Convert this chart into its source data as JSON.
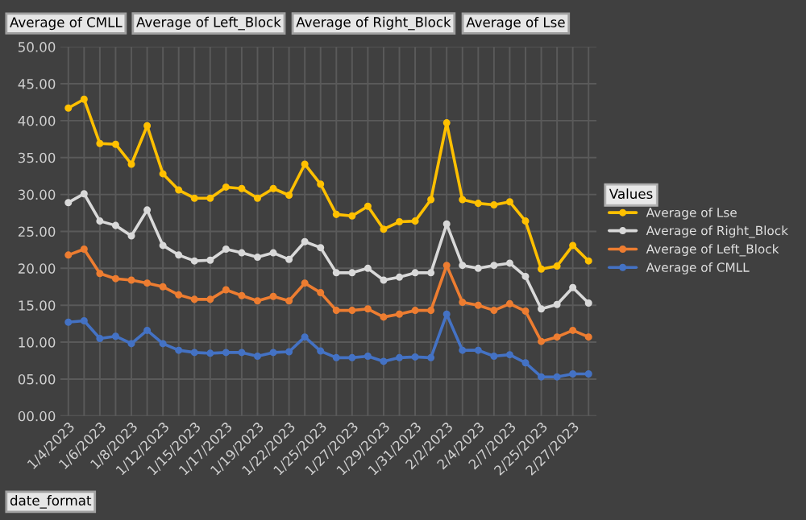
{
  "chart_data": {
    "type": "line",
    "categories": [
      "1/4/2023",
      null,
      "1/6/2023",
      null,
      "1/8/2023",
      null,
      "1/12/2023",
      null,
      "1/15/2023",
      null,
      "1/17/2023",
      null,
      "1/19/2023",
      null,
      "1/22/2023",
      null,
      "1/25/2023",
      null,
      "1/27/2023",
      null,
      "1/29/2023",
      null,
      "1/31/2023",
      null,
      "2/2/2023",
      null,
      "2/4/2023",
      null,
      "2/7/2023",
      null,
      "2/25/2023",
      null,
      "2/27/2023",
      null
    ],
    "series": [
      {
        "name": "Average of Lse",
        "color": "#ffc000",
        "values": [
          41.7,
          42.9,
          36.9,
          36.8,
          34.1,
          39.3,
          32.8,
          30.6,
          29.5,
          29.5,
          31.0,
          30.8,
          29.5,
          30.8,
          29.9,
          34.1,
          31.4,
          27.3,
          27.1,
          28.4,
          25.3,
          26.3,
          26.4,
          29.3,
          39.7,
          29.3,
          28.8,
          28.6,
          29.0,
          26.4,
          19.9,
          20.3,
          23.1,
          21.0
        ]
      },
      {
        "name": "Average of Right_Block",
        "color": "#d9d9d9",
        "values": [
          28.9,
          30.1,
          26.4,
          25.8,
          24.4,
          27.9,
          23.1,
          21.8,
          21.0,
          21.1,
          22.6,
          22.1,
          21.5,
          22.1,
          21.2,
          23.6,
          22.8,
          19.4,
          19.4,
          20.0,
          18.4,
          18.8,
          19.4,
          19.4,
          26.0,
          20.4,
          20.0,
          20.4,
          20.7,
          18.9,
          14.5,
          15.1,
          17.4,
          15.3
        ]
      },
      {
        "name": "Average of Left_Block",
        "color": "#ed7d31",
        "values": [
          21.8,
          22.6,
          19.3,
          18.6,
          18.4,
          18.0,
          17.5,
          16.4,
          15.8,
          15.8,
          17.1,
          16.3,
          15.6,
          16.2,
          15.6,
          18.0,
          16.7,
          14.3,
          14.3,
          14.5,
          13.4,
          13.8,
          14.3,
          14.3,
          20.4,
          15.4,
          15.0,
          14.3,
          15.2,
          14.2,
          10.1,
          10.7,
          11.6,
          10.7
        ]
      },
      {
        "name": "Average of CMLL",
        "color": "#4472c4",
        "values": [
          12.7,
          12.9,
          10.5,
          10.8,
          9.8,
          11.6,
          9.8,
          8.9,
          8.6,
          8.5,
          8.6,
          8.6,
          8.1,
          8.6,
          8.7,
          10.7,
          8.8,
          7.9,
          7.9,
          8.1,
          7.4,
          7.9,
          8.0,
          7.9,
          13.8,
          8.9,
          8.9,
          8.1,
          8.3,
          7.2,
          5.3,
          5.3,
          5.7,
          5.7
        ]
      }
    ],
    "ylim": [
      0,
      50
    ],
    "yticks": [
      {
        "value": 0,
        "label": "00.00"
      },
      {
        "value": 5,
        "label": "05.00"
      },
      {
        "value": 10,
        "label": "10.00"
      },
      {
        "value": 15,
        "label": "15.00"
      },
      {
        "value": 20,
        "label": "20.00"
      },
      {
        "value": 25,
        "label": "25.00"
      },
      {
        "value": 30,
        "label": "30.00"
      },
      {
        "value": 35,
        "label": "35.00"
      },
      {
        "value": 40,
        "label": "40.00"
      },
      {
        "value": 45,
        "label": "45.00"
      },
      {
        "value": 50,
        "label": "50.00"
      }
    ],
    "legend_title": "Values",
    "legend": "right",
    "grid": true,
    "marker": "circle",
    "line_style": "solid",
    "annotations": [
      "Average of CMLL",
      "Average of Left_Block",
      "Average of Right_Block",
      "Average of Lse",
      "date_format"
    ]
  }
}
